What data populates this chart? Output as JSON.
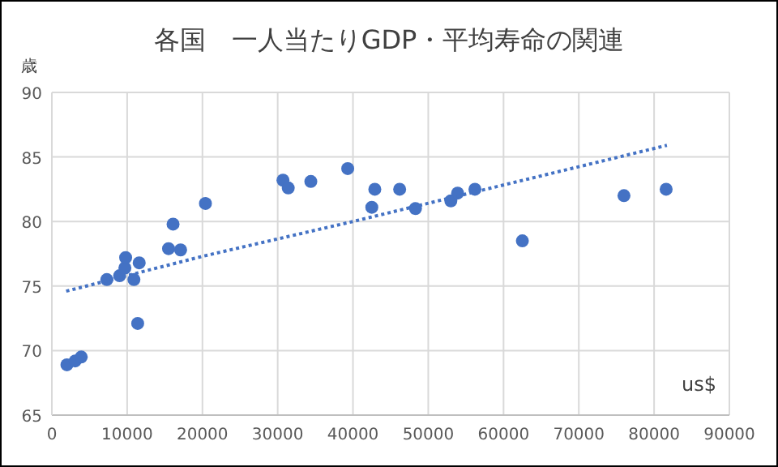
{
  "chart_data": {
    "type": "scatter",
    "title": "各国　一人当たりGDP・平均寿命の関連",
    "xlabel": "us$",
    "ylabel": "歳",
    "xlim": [
      0,
      90000
    ],
    "xticks": [
      0,
      10000,
      20000,
      30000,
      40000,
      50000,
      60000,
      70000,
      80000,
      90000
    ],
    "ylim": [
      65,
      90
    ],
    "yticks": [
      65,
      70,
      75,
      80,
      85,
      90
    ],
    "grid": true,
    "series": [
      {
        "color": "#4472c4",
        "marker": "circle",
        "x": [
          2000,
          3100,
          3900,
          7300,
          9000,
          9700,
          9800,
          10900,
          11600,
          11400,
          15500,
          16100,
          17100,
          20400,
          30700,
          31400,
          34400,
          39300,
          42500,
          42900,
          46200,
          48300,
          53000,
          53900,
          56200,
          62500,
          76000,
          81600
        ],
        "values": [
          68.9,
          69.2,
          69.5,
          75.5,
          75.8,
          76.4,
          77.2,
          75.5,
          76.8,
          72.1,
          77.9,
          79.8,
          77.8,
          81.4,
          83.2,
          82.6,
          83.1,
          84.1,
          81.1,
          82.5,
          82.5,
          81.0,
          81.6,
          82.2,
          82.5,
          78.5,
          82.0,
          82.5
        ]
      },
      {
        "type": "line",
        "color": "#4472c4",
        "line_style": "dotted",
        "marker": "none",
        "x": [
          1900,
          20000,
          40000,
          81700
        ],
        "values": [
          74.6,
          77.3,
          80.0,
          85.9
        ]
      }
    ]
  }
}
